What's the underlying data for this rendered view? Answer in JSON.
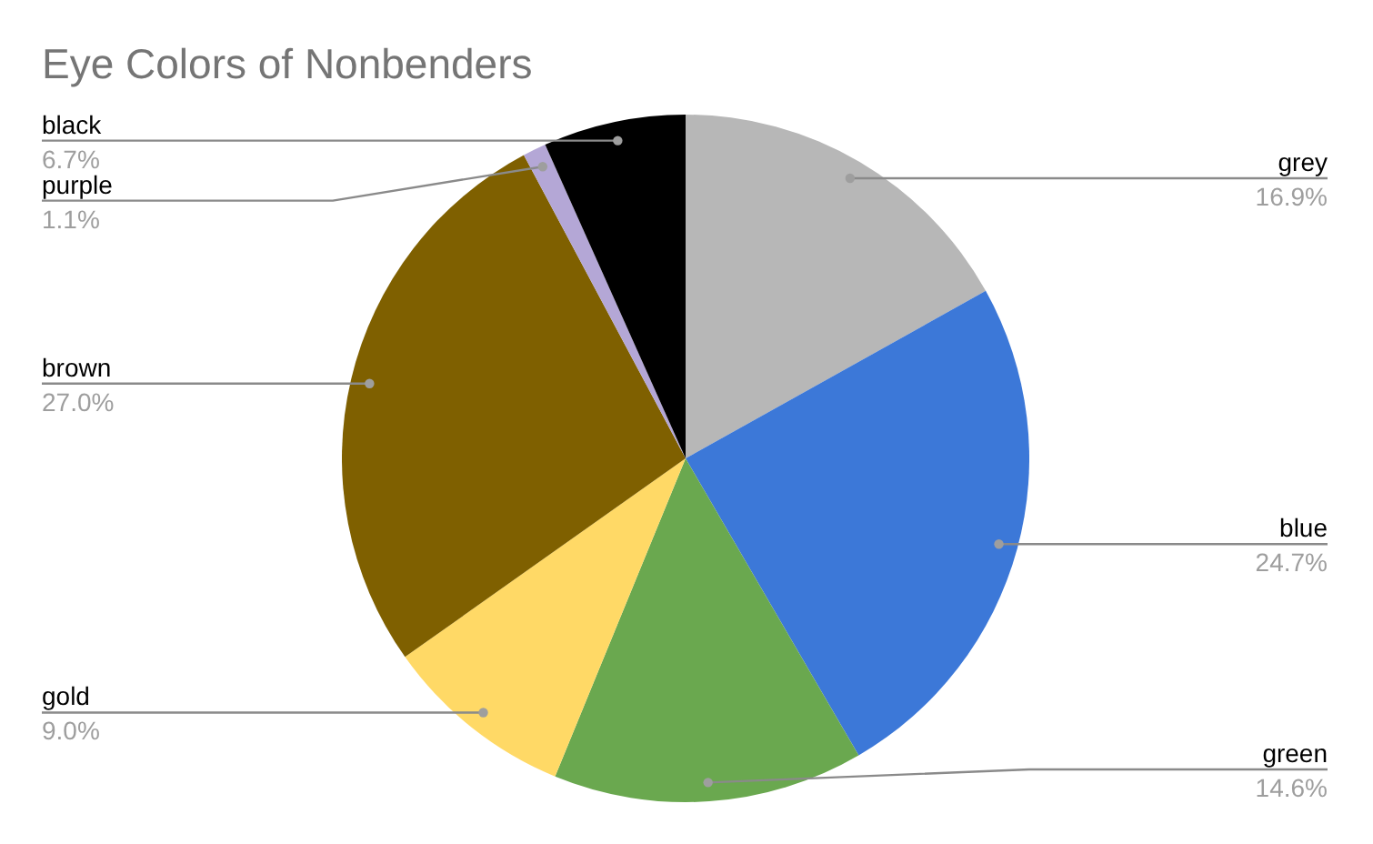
{
  "chart_data": {
    "type": "pie",
    "title": "Eye Colors of Nonbenders",
    "categories": [
      "grey",
      "blue",
      "green",
      "gold",
      "brown",
      "purple",
      "black"
    ],
    "values": [
      16.9,
      24.7,
      14.6,
      9.0,
      27.0,
      1.1,
      6.7
    ],
    "colors": [
      "#b7b7b7",
      "#3c78d8",
      "#6aa84f",
      "#ffd966",
      "#7f6000",
      "#b4a7d6",
      "#000000"
    ],
    "value_labels": [
      "16.9%",
      "24.7%",
      "14.6%",
      "9.0%",
      "27.0%",
      "1.1%",
      "6.7%"
    ]
  }
}
